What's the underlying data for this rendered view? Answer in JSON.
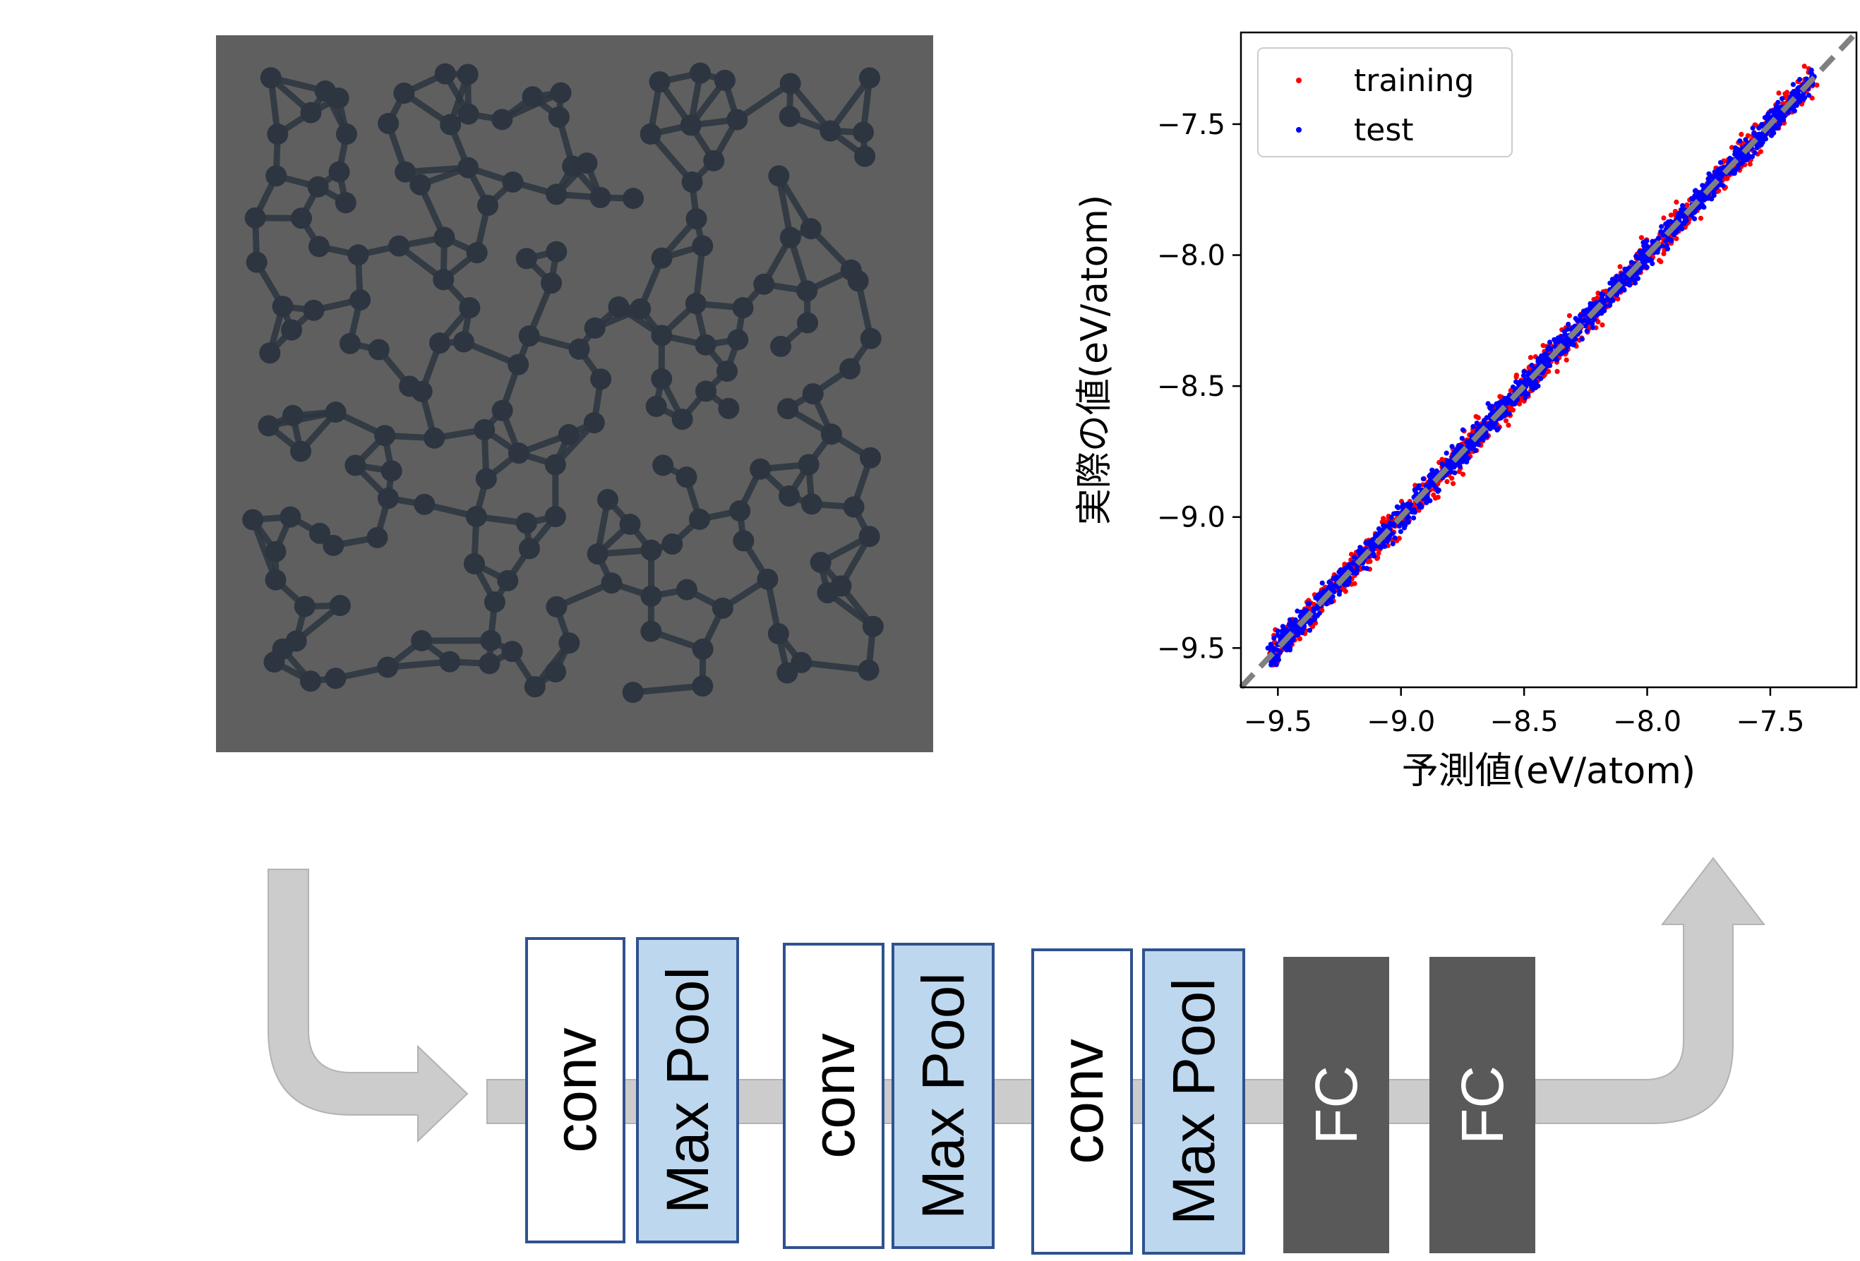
{
  "molecule_panel": {
    "background": "#5f5f5f",
    "atom_color": "#2c3540",
    "bond_color": "#2c3540"
  },
  "chart_data": {
    "type": "scatter",
    "xlabel": "予測値(eV/atom)",
    "ylabel": "実際の値(eV/atom)",
    "xlim": [
      -9.65,
      -7.15
    ],
    "ylim": [
      -9.65,
      -7.15
    ],
    "xticks": [
      -9.5,
      -9.0,
      -8.5,
      -8.0,
      -7.5
    ],
    "yticks": [
      -9.5,
      -9.0,
      -8.5,
      -8.0,
      -7.5
    ],
    "xtick_labels": [
      "−9.5",
      "−9.0",
      "−8.5",
      "−8.0",
      "−7.5"
    ],
    "ytick_labels": [
      "−9.5",
      "−9.0",
      "−8.5",
      "−8.0",
      "−7.5"
    ],
    "grid": false,
    "legend_position": "top-left",
    "reference_line": {
      "style": "dashed",
      "color": "#808080",
      "from": [
        -9.65,
        -9.65
      ],
      "to": [
        -7.15,
        -7.15
      ]
    },
    "series": [
      {
        "name": "training",
        "color": "#ff0000",
        "x_range": [
          -9.53,
          -7.32
        ],
        "spread": 0.05
      },
      {
        "name": "test",
        "color": "#0000ff",
        "x_range": [
          -9.53,
          -7.32
        ],
        "spread": 0.04
      }
    ]
  },
  "pipeline": {
    "arrow_color": "#cccccc",
    "blocks": [
      {
        "label": "conv",
        "kind": "conv"
      },
      {
        "label": "Max Pool",
        "kind": "pool"
      },
      {
        "label": "conv",
        "kind": "conv"
      },
      {
        "label": "Max Pool",
        "kind": "pool"
      },
      {
        "label": "conv",
        "kind": "conv"
      },
      {
        "label": "Max Pool",
        "kind": "pool"
      },
      {
        "label": "FC",
        "kind": "fc"
      },
      {
        "label": "FC",
        "kind": "fc"
      }
    ],
    "colors": {
      "conv_fill": "#ffffff",
      "pool_fill": "#bdd7ee",
      "fc_fill": "#595959",
      "border": "#2f528f",
      "fc_text": "#ffffff",
      "text": "#000000"
    }
  }
}
